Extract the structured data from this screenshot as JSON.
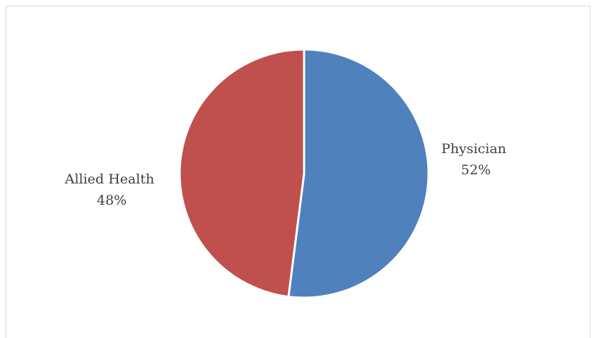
{
  "chart_data": {
    "type": "pie",
    "categories": [
      "Physician",
      "Allied Health"
    ],
    "values": [
      52,
      48
    ],
    "value_labels": [
      "52%",
      "48%"
    ],
    "colors": [
      "#4f81bd",
      "#c0504d"
    ],
    "title": "",
    "legend": "none",
    "start": "12 o'clock, clockwise"
  }
}
